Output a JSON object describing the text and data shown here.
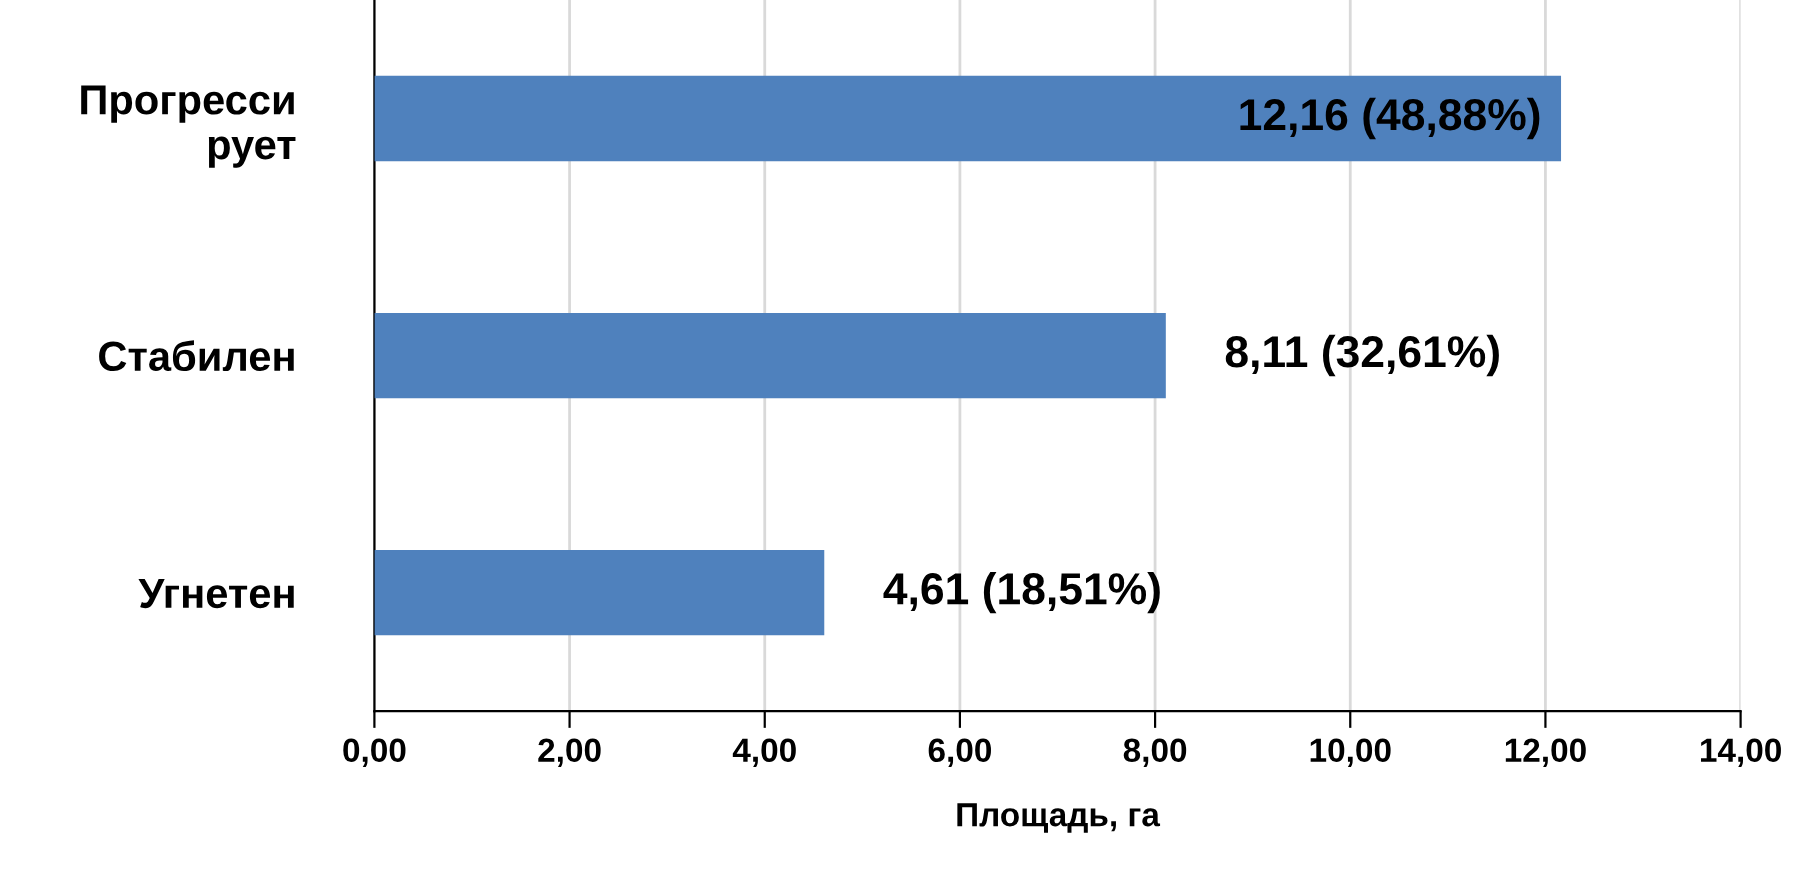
{
  "chart_data": {
    "type": "bar",
    "orientation": "horizontal",
    "xlabel": "Площадь, га",
    "categories": [
      "Прогресси\nрует",
      "Стабилен",
      "Угнетен"
    ],
    "values": [
      12.16,
      8.11,
      4.61
    ],
    "color": "#4f81bd",
    "value_labels": [
      "12,16 (48,88%)",
      "8,11 (32,61%)",
      "4,61 (18,51%)"
    ],
    "xlim": [
      0,
      14
    ],
    "xticks": [
      {
        "value": 0,
        "label": "0,00"
      },
      {
        "value": 2,
        "label": "2,00"
      },
      {
        "value": 4,
        "label": "4,00"
      },
      {
        "value": 6,
        "label": "6,00"
      },
      {
        "value": 8,
        "label": "8,00"
      },
      {
        "value": 10,
        "label": "10,00"
      },
      {
        "value": 12,
        "label": "12,00"
      },
      {
        "value": 14,
        "label": "14,00"
      }
    ],
    "grid": "x",
    "legend": false
  }
}
